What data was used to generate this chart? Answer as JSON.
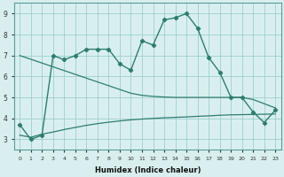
{
  "x": [
    0,
    1,
    2,
    3,
    4,
    5,
    6,
    7,
    8,
    9,
    10,
    11,
    12,
    13,
    14,
    15,
    16,
    17,
    18,
    19,
    20,
    21,
    22,
    23
  ],
  "y_main": [
    3.7,
    3.0,
    3.2,
    7.0,
    6.8,
    7.0,
    7.3,
    7.3,
    7.3,
    6.6,
    6.3,
    7.7,
    7.5,
    8.7,
    8.8,
    9.0,
    8.3,
    6.9,
    6.2,
    5.0,
    5.0,
    4.3,
    3.8,
    4.4
  ],
  "y_upper_smooth": [
    7.0,
    6.82,
    6.64,
    6.46,
    6.28,
    6.1,
    5.92,
    5.74,
    5.56,
    5.38,
    5.2,
    5.1,
    5.05,
    5.02,
    5.0,
    5.0,
    5.0,
    5.0,
    5.0,
    5.0,
    5.0,
    4.9,
    4.7,
    4.5
  ],
  "y_lower_smooth": [
    3.2,
    3.1,
    3.25,
    3.35,
    3.47,
    3.57,
    3.67,
    3.75,
    3.82,
    3.88,
    3.93,
    3.97,
    4.0,
    4.03,
    4.05,
    4.07,
    4.1,
    4.12,
    4.15,
    4.17,
    4.18,
    4.19,
    4.2,
    4.21
  ],
  "line_color": "#2e7d6e",
  "bg_color": "#d9efef",
  "grid_color": "#9ecece",
  "xlabel": "Humidex (Indice chaleur)",
  "ylim": [
    2.5,
    9.5
  ],
  "xlim": [
    -0.5,
    23.5
  ],
  "yticks": [
    3,
    4,
    5,
    6,
    7,
    8,
    9
  ],
  "xticks": [
    0,
    1,
    2,
    3,
    4,
    5,
    6,
    7,
    8,
    9,
    10,
    11,
    12,
    13,
    14,
    15,
    16,
    17,
    18,
    19,
    20,
    21,
    22,
    23
  ]
}
